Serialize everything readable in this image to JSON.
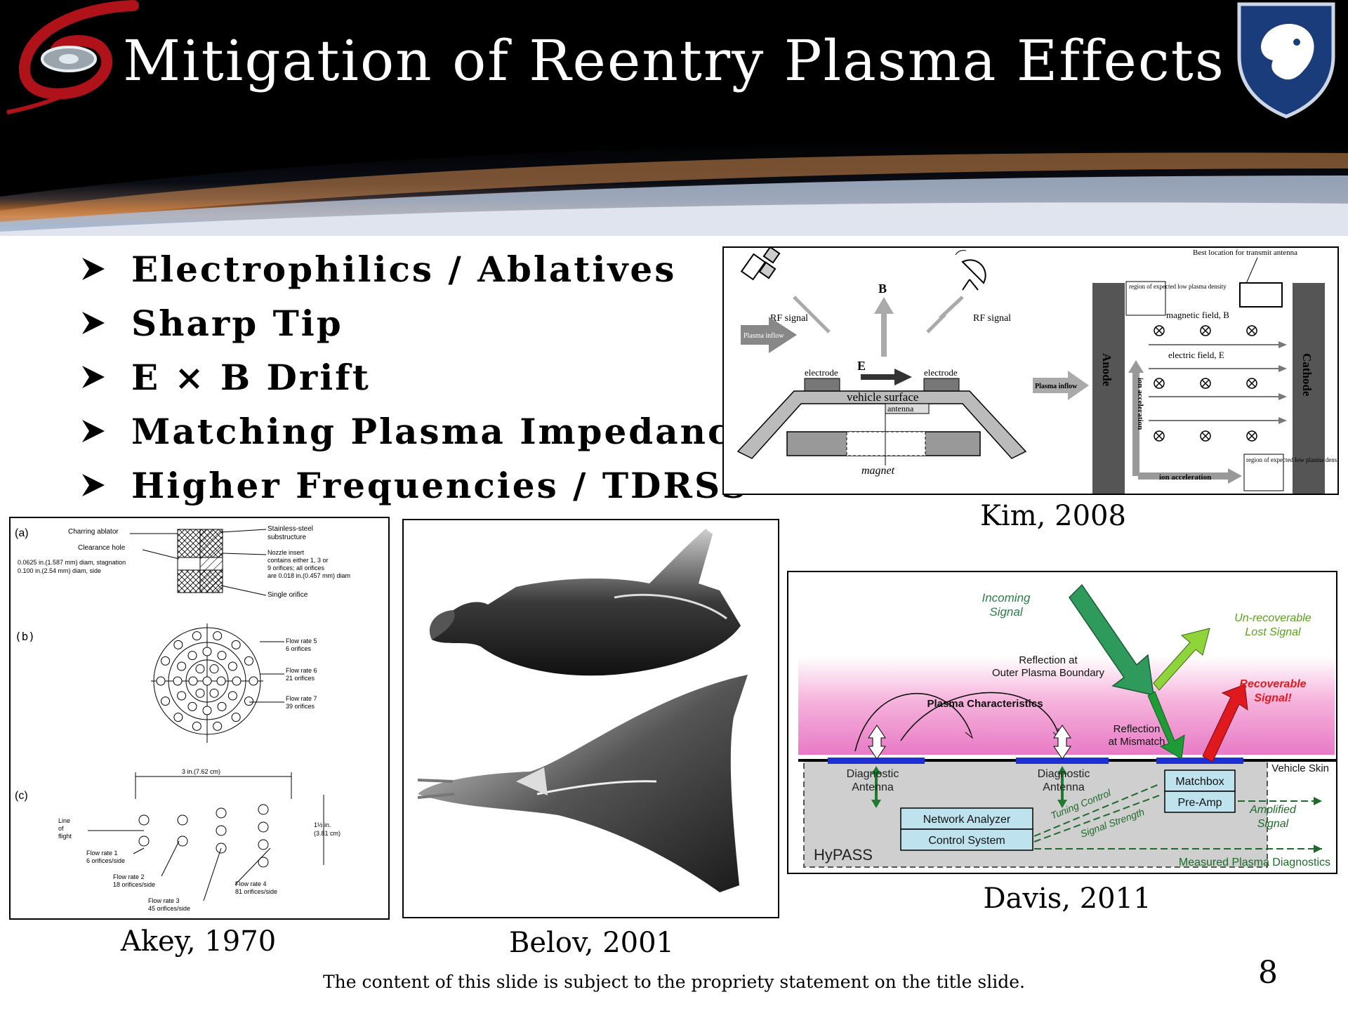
{
  "slide": {
    "title": "Mitigation of Reentry Plasma Effects",
    "page_number": "8",
    "footer": "The content of this slide is subject to the propriety statement on the title slide."
  },
  "bullets": [
    "Electrophilics / Ablatives",
    "Sharp Tip",
    "E × B Drift",
    "Matching Plasma Impedance",
    "Higher Frequencies / TDRSS"
  ],
  "figures": {
    "kim": {
      "caption": "Kim, 2008",
      "left": {
        "b_label": "B",
        "e_label": "E",
        "rf_left": "RF signal",
        "rf_right": "RF signal",
        "plasma_inflow": "Plasma inflow",
        "electrode_left": "electrode",
        "electrode_right": "electrode",
        "vehicle_surface": "vehicle surface",
        "antenna": "antenna",
        "magnet": "magnet"
      },
      "right": {
        "best_location": "Best location for transmit antenna",
        "region_low_1": "region of expected low plasma density",
        "region_low_2": "region of expected low plasma density",
        "magnetic_field": "magnetic field, B",
        "electric_field": "electric field, E",
        "plasma_inflow": "Plasma inflow",
        "anode": "Anode",
        "cathode": "Cathode",
        "ion_accel_vertical": "ion acceleration",
        "ion_accel_horizontal": "ion acceleration"
      }
    },
    "akey": {
      "caption": "Akey, 1970",
      "a": {
        "label": "(a)",
        "charring_ablator": "Charring ablator",
        "clearance_hole": "Clearance hole",
        "dims_1": "0.0625 in.(1.587 mm) diam, stagnation",
        "dims_2": "0.100  in.(2.54  mm) diam, side",
        "stainless": "Stainless-steel",
        "substructure": "substructure",
        "nozzle_1": "Nozzle insert",
        "nozzle_2": "contains either 1, 3 or",
        "nozzle_3": "9 orifices;  all orifices",
        "nozzle_4": "are 0.018 in.(0.457 mm) diam",
        "single_orifice": "Single orifice"
      },
      "b": {
        "label": "(b)",
        "fr5_a": "Flow rate 5",
        "fr5_b": "6 orifices",
        "fr6_a": "Flow rate 6",
        "fr6_b": "21 orifices",
        "fr7_a": "Flow rate 7",
        "fr7_b": "39 orifices"
      },
      "c": {
        "label": "(c)",
        "width": "3 in.(7.62 cm)",
        "height_a": "1½ in.",
        "height_b": "(3.81 cm)",
        "line_a": "Line",
        "line_b": "of",
        "line_c": "flight",
        "fr1_a": "Flow rate 1",
        "fr1_b": "6 orifices/side",
        "fr2_a": "Flow rate 2",
        "fr2_b": "18 orifices/side",
        "fr3_a": "Flow rate 3",
        "fr3_b": "45 orifices/side",
        "fr4_a": "Flow rate 4",
        "fr4_b": "81 orifices/side"
      }
    },
    "belov": {
      "caption": "Belov, 2001"
    },
    "davis": {
      "caption": "Davis, 2011",
      "incoming_a": "Incoming",
      "incoming_b": "Signal",
      "unrecoverable_a": "Un-recoverable",
      "unrecoverable_b": "Lost Signal",
      "reflection_outer_a": "Reflection at",
      "reflection_outer_b": "Outer Plasma Boundary",
      "recoverable_a": "Recoverable",
      "recoverable_b": "Signal!",
      "plasma_char": "Plasma Characteristics",
      "reflection_mismatch_a": "Reflection",
      "reflection_mismatch_b": "at Mismatch",
      "vehicle_skin": "Vehicle Skin",
      "diag_ant_1a": "Diagnostic",
      "diag_ant_1b": "Antenna",
      "diag_ant_2a": "Diagnostic",
      "diag_ant_2b": "Antenna",
      "matchbox": "Matchbox",
      "preamp": "Pre-Amp",
      "amplified_a": "Amplified",
      "amplified_b": "Signal",
      "tuning": "Tuning Control",
      "strength": "Signal Strength",
      "network": "Network Analyzer",
      "control": "Control System",
      "hypass": "HyPASS",
      "measured": "Measured Plasma Diagnostics"
    }
  },
  "colors": {
    "title_text": "#ffffff",
    "header_bg": "#000000",
    "davis_green": "#2e8b3d",
    "davis_red": "#e0191f",
    "davis_blue": "#1f2fd6",
    "davis_box": "#bfe3ee"
  }
}
